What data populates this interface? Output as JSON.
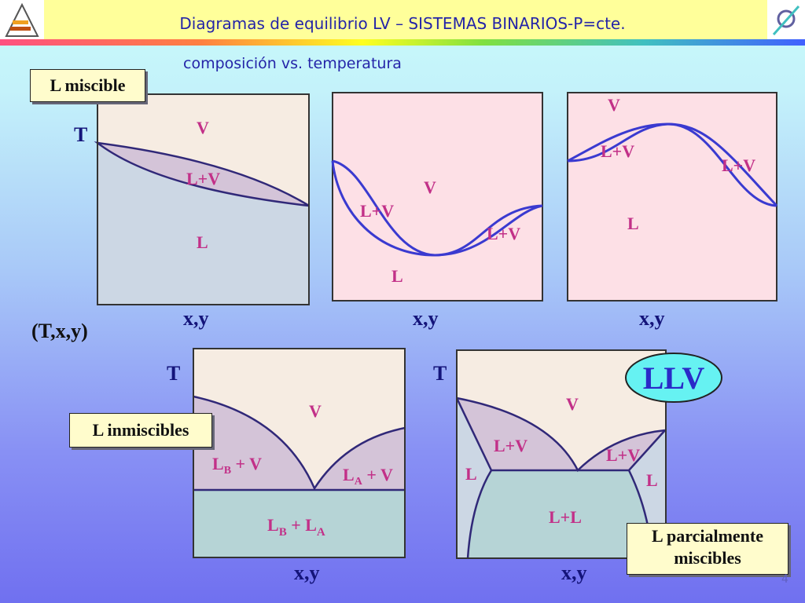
{
  "header": {
    "title": "Diagramas de equilibrio LV – SISTEMAS BINARIOS-P=cte.",
    "subtitle": "composición vs. temperatura"
  },
  "boxes": {
    "miscible": "L miscible",
    "txy": "(T,x,y)",
    "inmiscibles": "L inmiscibles",
    "parcial1": "L parcialmente",
    "parcial2": "miscibles",
    "llv": "LLV"
  },
  "axes": {
    "t": "T",
    "xy": "x,y"
  },
  "regions": {
    "v": "V",
    "l": "L",
    "lv": "L+V",
    "lb_v": "L",
    "lb_sub": "B",
    "plus_v": " + V",
    "la_v": "L",
    "la_sub": "A",
    "lb_la_1": "L",
    "lb_la_sub1": "B",
    "lb_la_plus": " + L",
    "lb_la_sub2": "A",
    "ll": "L+L"
  },
  "page_number": "4",
  "colors": {
    "region_label": "#c23088",
    "curve": "#3a3ad0",
    "title": "#2424a8"
  }
}
